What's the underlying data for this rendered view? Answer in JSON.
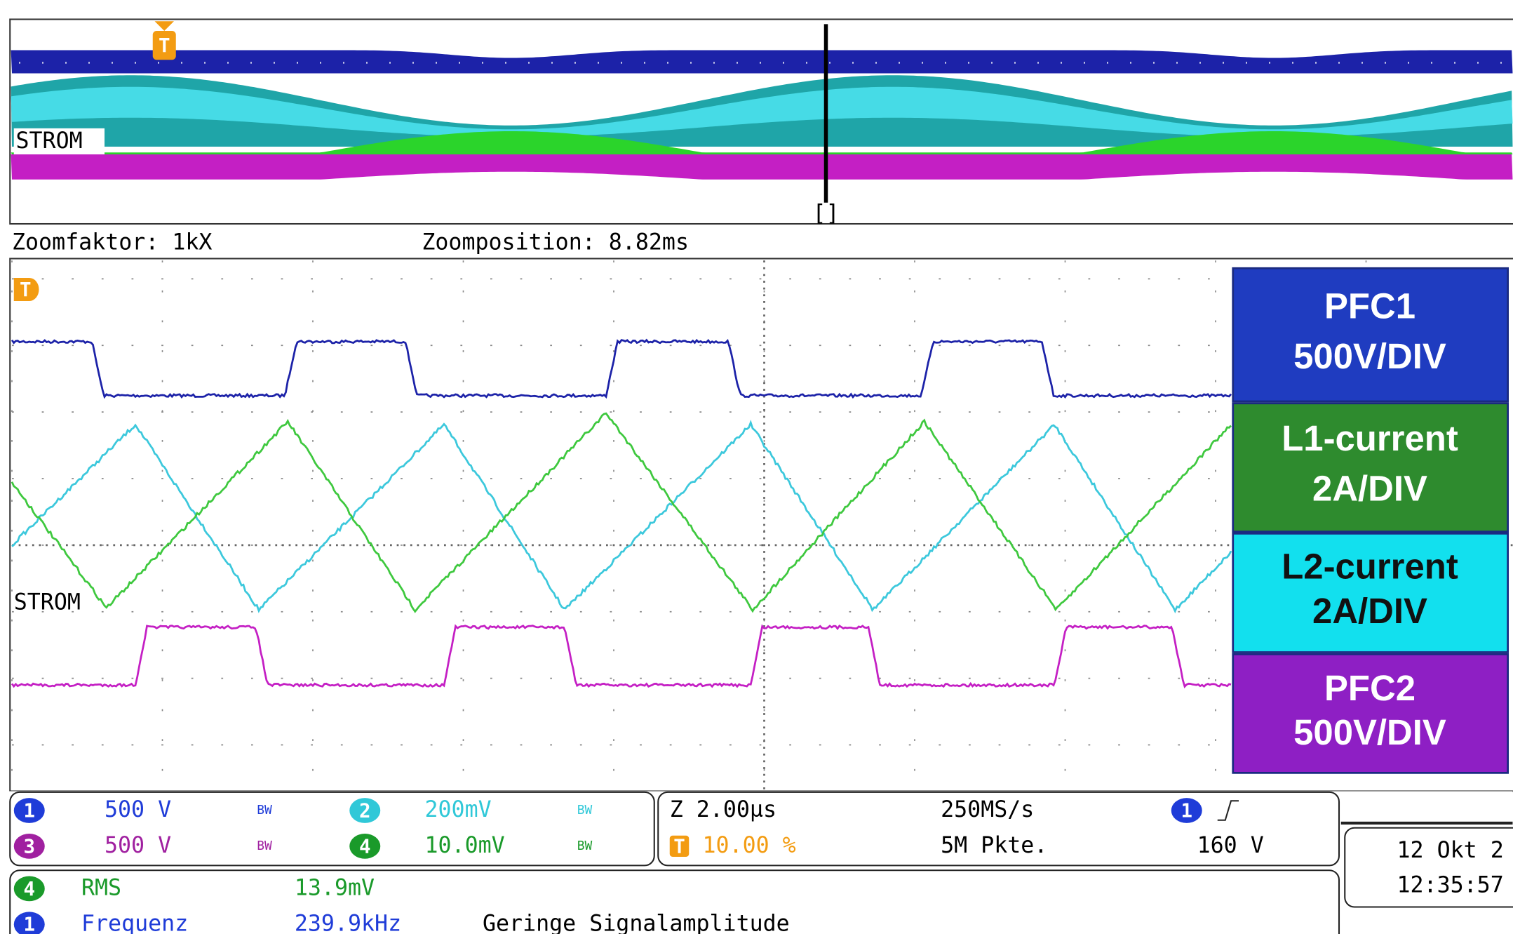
{
  "overview": {
    "trigger": "T",
    "label": "STROM",
    "cursor": "[]"
  },
  "zoom": {
    "factor": "Zoomfaktor: 1kX",
    "position": "Zoomposition: 8.82ms"
  },
  "main": {
    "trigger": "T",
    "label": "STROM"
  },
  "legend": [
    {
      "name": "PFC1",
      "scale": "500V/DIV"
    },
    {
      "name": "L1-current",
      "scale": "2A/DIV"
    },
    {
      "name": "L2-current",
      "scale": "2A/DIV"
    },
    {
      "name": "PFC2",
      "scale": "500V/DIV"
    }
  ],
  "channels": [
    {
      "badge": "1",
      "scale": "500 V",
      "bw": "BW"
    },
    {
      "badge": "2",
      "scale": "200mV",
      "bw": "BW"
    },
    {
      "badge": "3",
      "scale": "500 V",
      "bw": "BW"
    },
    {
      "badge": "4",
      "scale": "10.0mV",
      "bw": "BW"
    }
  ],
  "timebase": {
    "zoom": "Z 2.00µs",
    "trigger_badge": "T",
    "trigger_pos": "10.00 %",
    "sample_rate": "250MS/s",
    "record": "5M Pkte.",
    "trigger_channel": "1",
    "trigger_level": "160 V"
  },
  "datetime": {
    "date": "12 Okt  2",
    "time": "12:35:57"
  },
  "measurements": [
    {
      "badge": "4",
      "name": "RMS",
      "value": "13.9mV"
    },
    {
      "badge": "1",
      "name": "Frequenz",
      "value": "239.9kHz",
      "note": "Geringe Signalamplitude"
    }
  ]
}
